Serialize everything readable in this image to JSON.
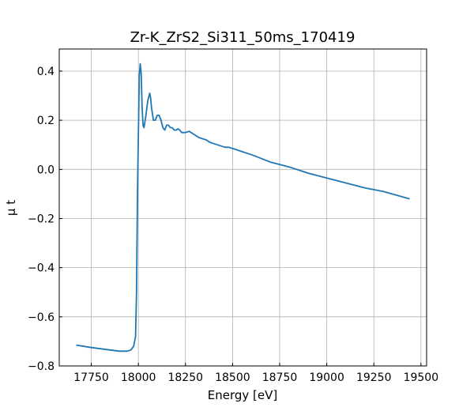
{
  "chart_data": {
    "type": "line",
    "title": "Zr-K_ZrS2_Si311_50ms_170419",
    "xlabel": "Energy [eV]",
    "ylabel": "μ t",
    "xlim": [
      17580,
      19530
    ],
    "ylim": [
      -0.8,
      0.49
    ],
    "grid": true,
    "x_ticks": [
      17750,
      18000,
      18250,
      18500,
      18750,
      19000,
      19250,
      19500
    ],
    "x_tick_labels": [
      "17750",
      "18000",
      "18250",
      "18500",
      "18750",
      "19000",
      "19250",
      "19500"
    ],
    "y_ticks": [
      -0.8,
      -0.6,
      -0.4,
      -0.2,
      0.0,
      0.2,
      0.4
    ],
    "y_tick_labels": [
      "−0.8",
      "−0.6",
      "−0.4",
      "−0.2",
      "0.0",
      "0.2",
      "0.4"
    ],
    "series": [
      {
        "color": "#1f77b4",
        "x": [
          17670,
          17750,
          17850,
          17900,
          17940,
          17960,
          17975,
          17985,
          17990,
          17995,
          18000,
          18005,
          18010,
          18015,
          18020,
          18025,
          18030,
          18040,
          18050,
          18060,
          18065,
          18070,
          18080,
          18090,
          18100,
          18110,
          18120,
          18130,
          18140,
          18150,
          18160,
          18170,
          18180,
          18190,
          18200,
          18210,
          18220,
          18230,
          18240,
          18250,
          18270,
          18280,
          18300,
          18320,
          18340,
          18360,
          18380,
          18400,
          18420,
          18440,
          18460,
          18480,
          18500,
          18520,
          18540,
          18560,
          18600,
          18650,
          18700,
          18750,
          18800,
          18900,
          19000,
          19100,
          19200,
          19300,
          19440
        ],
        "y": [
          -0.715,
          -0.725,
          -0.735,
          -0.74,
          -0.74,
          -0.735,
          -0.72,
          -0.68,
          -0.5,
          -0.1,
          0.15,
          0.38,
          0.43,
          0.39,
          0.25,
          0.18,
          0.17,
          0.22,
          0.28,
          0.31,
          0.29,
          0.25,
          0.2,
          0.2,
          0.22,
          0.22,
          0.2,
          0.17,
          0.16,
          0.18,
          0.18,
          0.17,
          0.17,
          0.16,
          0.16,
          0.165,
          0.16,
          0.15,
          0.15,
          0.15,
          0.155,
          0.15,
          0.14,
          0.13,
          0.125,
          0.12,
          0.11,
          0.105,
          0.1,
          0.095,
          0.09,
          0.09,
          0.085,
          0.08,
          0.075,
          0.07,
          0.06,
          0.045,
          0.03,
          0.02,
          0.01,
          -0.015,
          -0.035,
          -0.055,
          -0.075,
          -0.09,
          -0.12
        ]
      }
    ]
  }
}
